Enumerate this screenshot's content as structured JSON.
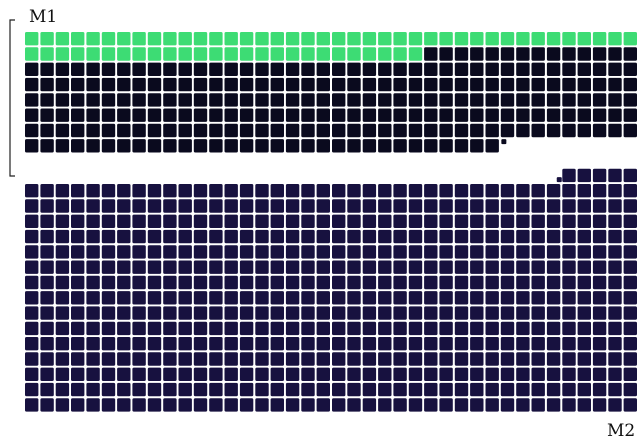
{
  "labels": {
    "top": "M1",
    "bottom": "M2"
  },
  "colors": {
    "highlight": "#3ddc74",
    "block1": "#0a0a1e",
    "block2": "#17113f",
    "bracket": "#222222",
    "background": "#ffffff"
  },
  "grid": {
    "columns": 40,
    "block1": {
      "rows": 8,
      "highlighted_full_rows": 1,
      "highlighted_cells_in_second_row": 26,
      "cells_in_last_row": 31
    },
    "block2": {
      "rows": 15,
      "cells_in_first_row": 5
    }
  }
}
